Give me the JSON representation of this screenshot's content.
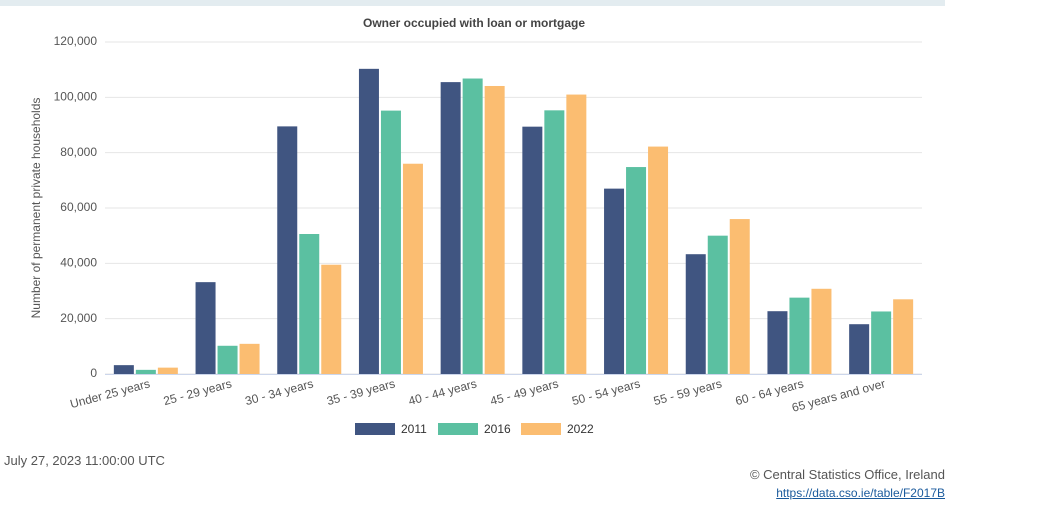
{
  "chart_data": {
    "type": "bar",
    "title": "Owner occupied with loan or mortgage",
    "y_label": "Number of permanent private households",
    "categories": [
      "Under 25 years",
      "25 - 29 years",
      "30 - 34 years",
      "35 - 39 years",
      "40 - 44 years",
      "45 - 49 years",
      "50 - 54 years",
      "55 - 59 years",
      "60 - 64 years",
      "65 years and over"
    ],
    "series": [
      {
        "name": "2011",
        "color": "#405581",
        "values": [
          3200,
          33200,
          89500,
          110300,
          105500,
          89400,
          67000,
          43300,
          22700,
          18000
        ]
      },
      {
        "name": "2016",
        "color": "#5bc0a1",
        "values": [
          1500,
          10200,
          50600,
          95200,
          106800,
          95300,
          74800,
          50000,
          27600,
          22600
        ]
      },
      {
        "name": "2022",
        "color": "#fbbd71",
        "values": [
          2300,
          10900,
          39500,
          76000,
          104100,
          101000,
          82200,
          56000,
          30800,
          27000
        ]
      }
    ],
    "ylim": [
      0,
      120000
    ],
    "yticks": [
      0,
      {
        "value": 20000,
        "label": "20,000"
      },
      {
        "value": 40000,
        "label": "40,000"
      },
      {
        "value": 60000,
        "label": "60,000"
      },
      {
        "value": 80000,
        "label": "80,000"
      },
      {
        "value": 100000,
        "label": "100,000"
      },
      {
        "value": 120000,
        "label": "120,000"
      }
    ],
    "grid": true,
    "legend": "bottom"
  },
  "footer": {
    "timestamp": "July 27, 2023 11:00:00 UTC",
    "copyright": "© Central Statistics Office, Ireland",
    "link": "https://data.cso.ie/table/F2017B"
  }
}
